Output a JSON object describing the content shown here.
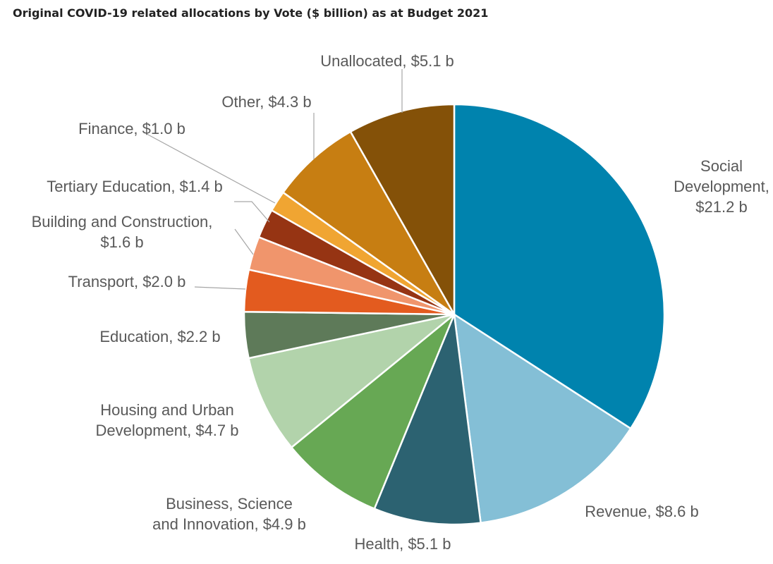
{
  "chart_data": {
    "type": "pie",
    "title": "Original COVID-19 related allocations by Vote ($ billion) as at Budget 2021",
    "unit": "$ billion",
    "start": "12 o'clock, clockwise",
    "slices": [
      {
        "name": "Social Development",
        "value": 21.2,
        "label": [
          "Social",
          "Development,",
          "$21.2 b"
        ],
        "color": "#0083ae"
      },
      {
        "name": "Revenue",
        "value": 8.6,
        "label": [
          "Revenue, $8.6 b"
        ],
        "color": "#84bfd6"
      },
      {
        "name": "Health",
        "value": 5.1,
        "label": [
          "Health, $5.1 b"
        ],
        "color": "#2c6271"
      },
      {
        "name": "Business, Science and Innovation",
        "value": 4.9,
        "label": [
          "Business, Science",
          "and Innovation, $4.9 b"
        ],
        "color": "#67a854"
      },
      {
        "name": "Housing and Urban Development",
        "value": 4.7,
        "label": [
          "Housing and Urban",
          "Development, $4.7 b"
        ],
        "color": "#b2d3ab"
      },
      {
        "name": "Education",
        "value": 2.2,
        "label": [
          "Education, $2.2 b"
        ],
        "color": "#5e7a59"
      },
      {
        "name": "Transport",
        "value": 2.0,
        "label": [
          "Transport, $2.0 b"
        ],
        "color": "#e35b1f"
      },
      {
        "name": "Building and Construction",
        "value": 1.6,
        "label": [
          "Building and Construction,",
          "$1.6 b"
        ],
        "color": "#f0956c"
      },
      {
        "name": "Tertiary Education",
        "value": 1.4,
        "label": [
          "Tertiary Education, $1.4 b"
        ],
        "color": "#963413"
      },
      {
        "name": "Finance",
        "value": 1.0,
        "label": [
          "Finance, $1.0 b"
        ],
        "color": "#f0a532"
      },
      {
        "name": "Other",
        "value": 4.3,
        "label": [
          "Other, $4.3 b"
        ],
        "color": "#c77e12"
      },
      {
        "name": "Unallocated",
        "value": 5.1,
        "label": [
          "Unallocated, $5.1 b"
        ],
        "color": "#845108"
      }
    ]
  }
}
